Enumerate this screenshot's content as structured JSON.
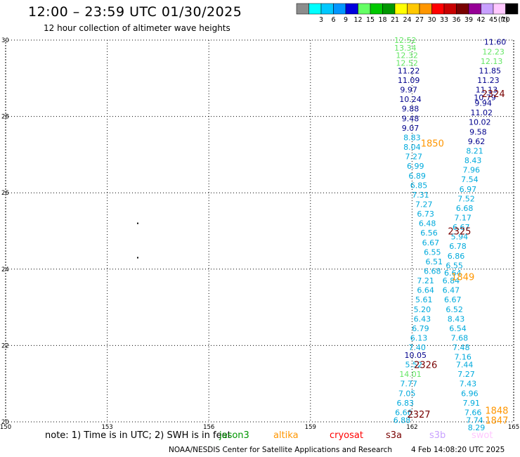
{
  "header": {
    "title": "12:00 – 23:59 UTC 01/30/2025",
    "subtitle": "12 hour collection of altimeter wave heights"
  },
  "legend": {
    "unit": "(ft)",
    "bins": [
      {
        "label": "",
        "color": "#8c8c8c"
      },
      {
        "label": "3",
        "color": "#00ffff"
      },
      {
        "label": "6",
        "color": "#00c8ff"
      },
      {
        "label": "9",
        "color": "#0096ff"
      },
      {
        "label": "12",
        "color": "#0000dc"
      },
      {
        "label": "15",
        "color": "#64ff64"
      },
      {
        "label": "18",
        "color": "#00c800"
      },
      {
        "label": "21",
        "color": "#009600"
      },
      {
        "label": "24",
        "color": "#ffff00"
      },
      {
        "label": "27",
        "color": "#ffc800"
      },
      {
        "label": "30",
        "color": "#ff9600"
      },
      {
        "label": "33",
        "color": "#ff0000"
      },
      {
        "label": "36",
        "color": "#c80000"
      },
      {
        "label": "39",
        "color": "#780000"
      },
      {
        "label": "42",
        "color": "#960096"
      },
      {
        "label": "45",
        "color": "#c8a0ff"
      },
      {
        "label": "70",
        "color": "#ffc8ff"
      },
      {
        "label": "",
        "color": "#000000"
      }
    ]
  },
  "note": {
    "text": "note:  1) Time is in UTC; 2) SWH is in feet"
  },
  "satellites": [
    {
      "name": "jason3",
      "color": "#009600"
    },
    {
      "name": "altika",
      "color": "#ff9600"
    },
    {
      "name": "cryosat",
      "color": "#ff0000"
    },
    {
      "name": "s3a",
      "color": "#780000"
    },
    {
      "name": "s3b",
      "color": "#c8a0ff"
    },
    {
      "name": "swot",
      "color": "#ffc8ff"
    }
  ],
  "footer": {
    "center": "NOAA/NESDIS Center for Satellite Applications and Research",
    "timestamp": "4 Feb 14:08:20 UTC 2025"
  },
  "colors": {
    "dark_blue": "#00008c",
    "cyan": "#00aadc",
    "light_green": "#64e664",
    "orange": "#ff9600",
    "maroon": "#780000"
  },
  "chart_data": {
    "type": "scatter",
    "xlim": [
      150,
      165
    ],
    "ylim": [
      20,
      30
    ],
    "x_ticks": [
      "150",
      "153",
      "156",
      "159",
      "162",
      "165"
    ],
    "y_ticks": [
      "20",
      "22",
      "24",
      "26",
      "28",
      "30"
    ],
    "grid": true,
    "dots": [
      {
        "lon": 153.9,
        "lat": 25.2
      },
      {
        "lon": 153.9,
        "lat": 24.3
      }
    ],
    "tracks": [
      {
        "id": "2324",
        "label_color": "maroon",
        "label_lon": 164.4,
        "label_lat": 28.6
      },
      {
        "id": "1850",
        "label_color": "orange",
        "label_lon": 162.6,
        "label_lat": 27.3
      },
      {
        "id": "2325",
        "label_color": "maroon",
        "label_lon": 163.4,
        "label_lat": 25.0
      },
      {
        "id": "1849",
        "label_color": "orange",
        "label_lon": 163.5,
        "label_lat": 23.8
      },
      {
        "id": "2326",
        "label_color": "maroon",
        "label_lon": 162.4,
        "label_lat": 21.5
      },
      {
        "id": "2327",
        "label_color": "maroon",
        "label_lon": 162.2,
        "label_lat": 20.2
      },
      {
        "id": "1848",
        "label_color": "orange",
        "label_lon": 164.5,
        "label_lat": 20.3
      },
      {
        "id": "1847",
        "label_color": "orange",
        "label_lon": 164.5,
        "label_lat": 20.05
      }
    ],
    "swh_labels": [
      {
        "v": "12.52",
        "lon": 161.8,
        "lat": 30.0,
        "c": "light_green"
      },
      {
        "v": "13.34",
        "lon": 161.8,
        "lat": 29.8,
        "c": "light_green"
      },
      {
        "v": "12.32",
        "lon": 161.85,
        "lat": 29.6,
        "c": "light_green"
      },
      {
        "v": "12.52",
        "lon": 161.85,
        "lat": 29.4,
        "c": "light_green"
      },
      {
        "v": "11.22",
        "lon": 161.9,
        "lat": 29.2,
        "c": "dark_blue"
      },
      {
        "v": "11.09",
        "lon": 161.9,
        "lat": 28.95,
        "c": "dark_blue"
      },
      {
        "v": "9.97",
        "lon": 161.9,
        "lat": 28.7,
        "c": "dark_blue"
      },
      {
        "v": "10.24",
        "lon": 161.95,
        "lat": 28.45,
        "c": "dark_blue"
      },
      {
        "v": "9.88",
        "lon": 161.95,
        "lat": 28.2,
        "c": "dark_blue"
      },
      {
        "v": "9.48",
        "lon": 161.95,
        "lat": 27.95,
        "c": "dark_blue"
      },
      {
        "v": "9.07",
        "lon": 161.95,
        "lat": 27.7,
        "c": "dark_blue"
      },
      {
        "v": "8.83",
        "lon": 162.0,
        "lat": 27.45,
        "c": "cyan"
      },
      {
        "v": "8.04",
        "lon": 162.0,
        "lat": 27.2,
        "c": "cyan"
      },
      {
        "v": "7.27",
        "lon": 162.05,
        "lat": 26.95,
        "c": "cyan"
      },
      {
        "v": "6.99",
        "lon": 162.1,
        "lat": 26.7,
        "c": "cyan"
      },
      {
        "v": "6.89",
        "lon": 162.15,
        "lat": 26.45,
        "c": "cyan"
      },
      {
        "v": "6.85",
        "lon": 162.2,
        "lat": 26.2,
        "c": "cyan"
      },
      {
        "v": "7.31",
        "lon": 162.25,
        "lat": 25.95,
        "c": "cyan"
      },
      {
        "v": "7.27",
        "lon": 162.35,
        "lat": 25.7,
        "c": "cyan"
      },
      {
        "v": "6.73",
        "lon": 162.4,
        "lat": 25.45,
        "c": "cyan"
      },
      {
        "v": "6.48",
        "lon": 162.45,
        "lat": 25.2,
        "c": "cyan"
      },
      {
        "v": "6.56",
        "lon": 162.5,
        "lat": 24.95,
        "c": "cyan"
      },
      {
        "v": "6.67",
        "lon": 162.55,
        "lat": 24.7,
        "c": "cyan"
      },
      {
        "v": "6.55",
        "lon": 162.6,
        "lat": 24.45,
        "c": "cyan"
      },
      {
        "v": "6.51",
        "lon": 162.65,
        "lat": 24.2,
        "c": "cyan"
      },
      {
        "v": "6.68",
        "lon": 162.6,
        "lat": 23.95,
        "c": "cyan"
      },
      {
        "v": "7.21",
        "lon": 162.4,
        "lat": 23.7,
        "c": "cyan"
      },
      {
        "v": "6.64",
        "lon": 162.4,
        "lat": 23.45,
        "c": "cyan"
      },
      {
        "v": "5.61",
        "lon": 162.35,
        "lat": 23.2,
        "c": "cyan"
      },
      {
        "v": "5.20",
        "lon": 162.3,
        "lat": 22.95,
        "c": "cyan"
      },
      {
        "v": "6.43",
        "lon": 162.3,
        "lat": 22.7,
        "c": "cyan"
      },
      {
        "v": "6.79",
        "lon": 162.25,
        "lat": 22.45,
        "c": "cyan"
      },
      {
        "v": "6.13",
        "lon": 162.2,
        "lat": 22.2,
        "c": "cyan"
      },
      {
        "v": "7.40",
        "lon": 162.15,
        "lat": 21.95,
        "c": "cyan"
      },
      {
        "v": "10.05",
        "lon": 162.1,
        "lat": 21.75,
        "c": "dark_blue"
      },
      {
        "v": "5.52",
        "lon": 162.05,
        "lat": 21.5,
        "c": "cyan"
      },
      {
        "v": "14.01",
        "lon": 161.95,
        "lat": 21.25,
        "c": "light_green"
      },
      {
        "v": "7.77",
        "lon": 161.9,
        "lat": 21.0,
        "c": "cyan"
      },
      {
        "v": "7.05",
        "lon": 161.85,
        "lat": 20.75,
        "c": "cyan"
      },
      {
        "v": "6.83",
        "lon": 161.8,
        "lat": 20.5,
        "c": "cyan"
      },
      {
        "v": "6.66",
        "lon": 161.75,
        "lat": 20.25,
        "c": "cyan"
      },
      {
        "v": "6.88",
        "lon": 161.7,
        "lat": 20.05,
        "c": "cyan"
      },
      {
        "v": "11.60",
        "lon": 164.45,
        "lat": 29.95,
        "c": "dark_blue"
      },
      {
        "v": "12.23",
        "lon": 164.4,
        "lat": 29.7,
        "c": "light_green"
      },
      {
        "v": "12.13",
        "lon": 164.35,
        "lat": 29.45,
        "c": "light_green"
      },
      {
        "v": "11.85",
        "lon": 164.3,
        "lat": 29.2,
        "c": "dark_blue"
      },
      {
        "v": "11.23",
        "lon": 164.25,
        "lat": 28.95,
        "c": "dark_blue"
      },
      {
        "v": "11.13",
        "lon": 164.2,
        "lat": 28.7,
        "c": "dark_blue"
      },
      {
        "v": "10.79",
        "lon": 164.15,
        "lat": 28.5,
        "c": "dark_blue"
      },
      {
        "v": "9.94",
        "lon": 164.1,
        "lat": 28.35,
        "c": "dark_blue"
      },
      {
        "v": "11.02",
        "lon": 164.05,
        "lat": 28.1,
        "c": "dark_blue"
      },
      {
        "v": "10.02",
        "lon": 164.0,
        "lat": 27.85,
        "c": "dark_blue"
      },
      {
        "v": "9.58",
        "lon": 163.95,
        "lat": 27.6,
        "c": "dark_blue"
      },
      {
        "v": "9.62",
        "lon": 163.9,
        "lat": 27.35,
        "c": "dark_blue"
      },
      {
        "v": "8.21",
        "lon": 163.85,
        "lat": 27.1,
        "c": "cyan"
      },
      {
        "v": "8.43",
        "lon": 163.8,
        "lat": 26.85,
        "c": "cyan"
      },
      {
        "v": "7.96",
        "lon": 163.75,
        "lat": 26.6,
        "c": "cyan"
      },
      {
        "v": "7.54",
        "lon": 163.7,
        "lat": 26.35,
        "c": "cyan"
      },
      {
        "v": "6.97",
        "lon": 163.65,
        "lat": 26.1,
        "c": "cyan"
      },
      {
        "v": "7.52",
        "lon": 163.6,
        "lat": 25.85,
        "c": "cyan"
      },
      {
        "v": "6.68",
        "lon": 163.55,
        "lat": 25.6,
        "c": "cyan"
      },
      {
        "v": "7.17",
        "lon": 163.5,
        "lat": 25.35,
        "c": "cyan"
      },
      {
        "v": "6.67",
        "lon": 163.45,
        "lat": 25.1,
        "c": "cyan"
      },
      {
        "v": "5.94",
        "lon": 163.4,
        "lat": 24.85,
        "c": "cyan"
      },
      {
        "v": "6.78",
        "lon": 163.35,
        "lat": 24.6,
        "c": "cyan"
      },
      {
        "v": "6.86",
        "lon": 163.3,
        "lat": 24.35,
        "c": "cyan"
      },
      {
        "v": "6.55",
        "lon": 163.25,
        "lat": 24.1,
        "c": "cyan"
      },
      {
        "v": "6.64",
        "lon": 163.2,
        "lat": 23.9,
        "c": "cyan"
      },
      {
        "v": "6.84",
        "lon": 163.15,
        "lat": 23.7,
        "c": "cyan"
      },
      {
        "v": "6.47",
        "lon": 163.15,
        "lat": 23.45,
        "c": "cyan"
      },
      {
        "v": "6.67",
        "lon": 163.2,
        "lat": 23.2,
        "c": "cyan"
      },
      {
        "v": "6.52",
        "lon": 163.25,
        "lat": 22.95,
        "c": "cyan"
      },
      {
        "v": "8.43",
        "lon": 163.3,
        "lat": 22.7,
        "c": "cyan"
      },
      {
        "v": "6.54",
        "lon": 163.35,
        "lat": 22.45,
        "c": "cyan"
      },
      {
        "v": "7.68",
        "lon": 163.4,
        "lat": 22.2,
        "c": "cyan"
      },
      {
        "v": "7.48",
        "lon": 163.45,
        "lat": 21.95,
        "c": "cyan"
      },
      {
        "v": "7.16",
        "lon": 163.5,
        "lat": 21.7,
        "c": "cyan"
      },
      {
        "v": "7.44",
        "lon": 163.55,
        "lat": 21.5,
        "c": "cyan"
      },
      {
        "v": "7.27",
        "lon": 163.6,
        "lat": 21.25,
        "c": "cyan"
      },
      {
        "v": "7.43",
        "lon": 163.65,
        "lat": 21.0,
        "c": "cyan"
      },
      {
        "v": "6.96",
        "lon": 163.7,
        "lat": 20.75,
        "c": "cyan"
      },
      {
        "v": "7.91",
        "lon": 163.75,
        "lat": 20.5,
        "c": "cyan"
      },
      {
        "v": "7.66",
        "lon": 163.8,
        "lat": 20.25,
        "c": "cyan"
      },
      {
        "v": "7.74",
        "lon": 163.85,
        "lat": 20.05,
        "c": "cyan"
      },
      {
        "v": "8.29",
        "lon": 163.9,
        "lat": 19.85,
        "c": "cyan"
      }
    ]
  }
}
